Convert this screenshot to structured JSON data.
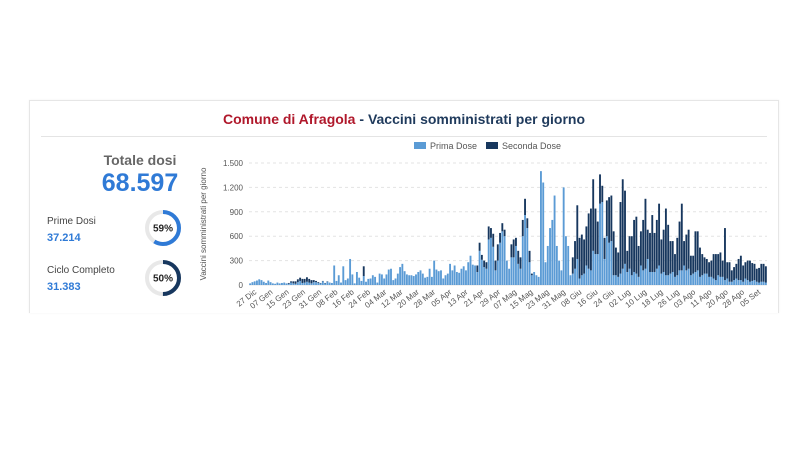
{
  "title": {
    "comune": "Comune di Afragola",
    "separator": " - ",
    "subtitle": "Vaccini somministrati per giorno"
  },
  "summary": {
    "totale_label": "Totale dosi",
    "totale_value": "68.597",
    "prime_label": "Prime Dosi",
    "prime_value": "37.214",
    "prime_pct_label": "59%",
    "prime_pct": 59,
    "ciclo_label": "Ciclo Completo",
    "ciclo_value": "31.383",
    "ciclo_pct_label": "50%",
    "ciclo_pct": 50
  },
  "colors": {
    "prima": "#5b9bd5",
    "seconda": "#17375e",
    "ring_prime": "#2f7ad6",
    "ring_ciclo": "#17375e",
    "ring_track": "#e8e8e8"
  },
  "chart_data": {
    "type": "bar",
    "stacked": true,
    "ylabel": "Vaccini somministrati per giorno",
    "ylim": [
      0,
      1500
    ],
    "yticks": [
      0,
      300,
      600,
      900,
      1200,
      1500
    ],
    "ytick_labels": [
      "0",
      "300",
      "600",
      "900",
      "1.200",
      "1.500"
    ],
    "grid": true,
    "legend_position": "top",
    "legend": [
      "Prima Dose",
      "Seconda Dose"
    ],
    "xtick_labels": [
      "27 Dic",
      "07 Gen",
      "15 Gen",
      "23 Gen",
      "31 Gen",
      "08 Feb",
      "16 Feb",
      "24 Feb",
      "04 Mar",
      "12 Mar",
      "20 Mar",
      "28 Mar",
      "05 Apr",
      "13 Apr",
      "21 Apr",
      "29 Apr",
      "07 Mag",
      "15 Mag",
      "23 Mag",
      "31 Mag",
      "08 Giu",
      "16 Giu",
      "24 Giu",
      "02 Lug",
      "10 Lug",
      "18 Lug",
      "26 Lug",
      "03 Ago",
      "11 Ago",
      "20 Ago",
      "28 Ago",
      "05 Set"
    ],
    "series": [
      {
        "name": "Prima Dose",
        "values": [
          20,
          35,
          45,
          55,
          70,
          60,
          40,
          25,
          55,
          35,
          20,
          15,
          30,
          20,
          25,
          30,
          20,
          15,
          30,
          20,
          15,
          35,
          50,
          25,
          30,
          40,
          30,
          20,
          35,
          35,
          25,
          20,
          45,
          20,
          40,
          30,
          25,
          240,
          50,
          120,
          30,
          230,
          60,
          80,
          320,
          130,
          20,
          160,
          90,
          50,
          110,
          40,
          75,
          80,
          120,
          100,
          30,
          140,
          130,
          80,
          130,
          190,
          200,
          60,
          80,
          140,
          220,
          260,
          170,
          130,
          120,
          120,
          110,
          130,
          160,
          180,
          140,
          90,
          100,
          200,
          100,
          300,
          190,
          170,
          180,
          80,
          120,
          140,
          260,
          180,
          240,
          160,
          150,
          200,
          230,
          180,
          280,
          360,
          250,
          240,
          160,
          420,
          310,
          220,
          200,
          560,
          580,
          470,
          180,
          300,
          520,
          660,
          600,
          300,
          200,
          340,
          340,
          480,
          260,
          200,
          600,
          860,
          700,
          280,
          120,
          160,
          120,
          100,
          1400,
          1260,
          280,
          480,
          700,
          800,
          1100,
          480,
          300,
          180,
          1200,
          600,
          480,
          120,
          140,
          200,
          320,
          80,
          120,
          140,
          240,
          200,
          180,
          420,
          380,
          380,
          1000,
          1020,
          320,
          600,
          520,
          540,
          120,
          120,
          100,
          140,
          200,
          260,
          160,
          200,
          120,
          160,
          140,
          100,
          240,
          180,
          200,
          320,
          160,
          160,
          160,
          200,
          240,
          140,
          160,
          120,
          120,
          140,
          160,
          100,
          120,
          180,
          180,
          240,
          180,
          200,
          120,
          140,
          160,
          180,
          100,
          120,
          140,
          140,
          100,
          100,
          80,
          60,
          120,
          100,
          100,
          60,
          80,
          40,
          40,
          60,
          80,
          60,
          60,
          40,
          80,
          60,
          40,
          50,
          60,
          40,
          30,
          40,
          40,
          30
        ]
      },
      {
        "name": "Seconda Dose",
        "values": [
          0,
          0,
          0,
          0,
          0,
          0,
          0,
          0,
          0,
          0,
          0,
          0,
          0,
          0,
          0,
          0,
          0,
          10,
          15,
          25,
          30,
          35,
          40,
          50,
          45,
          55,
          45,
          40,
          25,
          15,
          10,
          5,
          5,
          5,
          5,
          0,
          0,
          0,
          0,
          0,
          0,
          0,
          0,
          0,
          0,
          0,
          0,
          0,
          0,
          0,
          120,
          0,
          0,
          0,
          0,
          0,
          0,
          0,
          0,
          0,
          0,
          0,
          0,
          0,
          0,
          0,
          0,
          0,
          0,
          0,
          0,
          0,
          0,
          0,
          0,
          0,
          0,
          0,
          0,
          0,
          0,
          0,
          0,
          0,
          0,
          0,
          0,
          0,
          0,
          0,
          0,
          0,
          0,
          0,
          0,
          0,
          0,
          0,
          0,
          0,
          80,
          100,
          60,
          80,
          80,
          160,
          120,
          160,
          120,
          200,
          120,
          100,
          80,
          0,
          0,
          160,
          220,
          100,
          160,
          140,
          200,
          200,
          120,
          140,
          20,
          0,
          0,
          0,
          0,
          0,
          0,
          0,
          0,
          0,
          0,
          0,
          0,
          0,
          0,
          0,
          0,
          0,
          200,
          340,
          660,
          500,
          500,
          420,
          480,
          680,
          760,
          880,
          560,
          400,
          360,
          200,
          260,
          440,
          560,
          560,
          540,
          340,
          300,
          880,
          1100,
          900,
          260,
          400,
          480,
          640,
          700,
          380,
          420,
          620,
          860,
          360,
          480,
          700,
          480,
          600,
          760,
          420,
          520,
          820,
          620,
          400,
          380,
          280,
          460,
          600,
          820,
          300,
          440,
          480,
          240,
          220,
          500,
          480,
          360,
          260,
          200,
          180,
          180,
          200,
          300,
          320,
          260,
          300,
          200,
          640,
          200,
          240,
          140,
          160,
          180,
          260,
          300,
          200,
          200,
          240,
          260,
          220,
          200,
          160,
          180,
          220,
          220,
          200,
          180,
          220,
          120,
          160,
          200,
          140,
          120
        ]
      }
    ]
  }
}
